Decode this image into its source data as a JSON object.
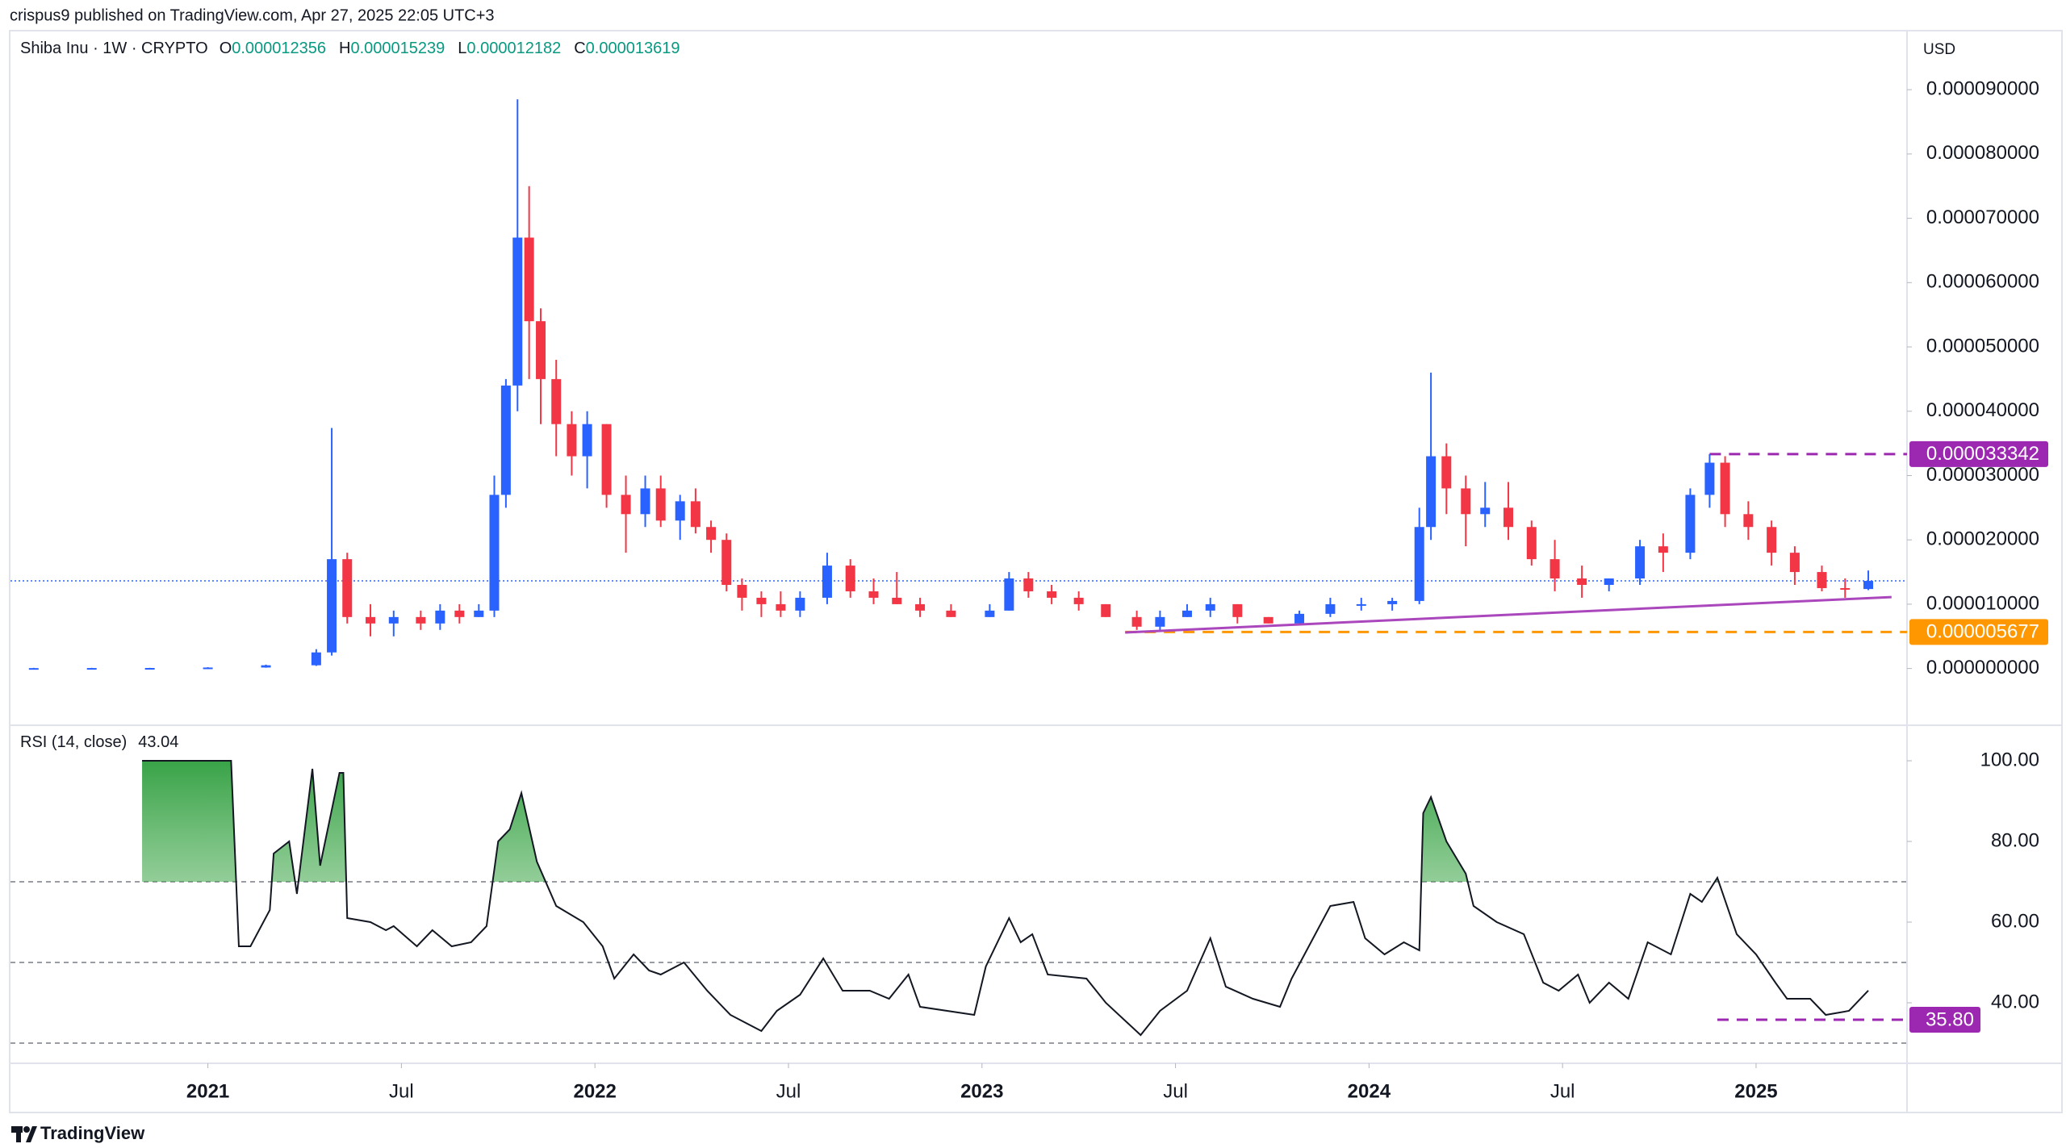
{
  "header": {
    "publisher": "crispus9 published on TradingView.com, Apr 27, 2025 22:05 UTC+3"
  },
  "footer": {
    "brand": "TradingView"
  },
  "chart_data": [
    {
      "type": "candlestick",
      "title": "Shiba Inu · 1W · CRYPTO",
      "y_label": "USD",
      "ohlc_keys": [
        "O",
        "H",
        "L",
        "C"
      ],
      "xlim": [
        2020.49,
        2025.39
      ],
      "ylim": [
        -8.2e-06,
        9.88e-05
      ],
      "yticks": [
        {
          "value": 0,
          "label": "0.000000000"
        },
        {
          "value": 1e-05,
          "label": "0.000010000"
        },
        {
          "value": 2e-05,
          "label": "0.000020000"
        },
        {
          "value": 3e-05,
          "label": "0.000030000"
        },
        {
          "value": 4e-05,
          "label": "0.000040000"
        },
        {
          "value": 5e-05,
          "label": "0.000050000"
        },
        {
          "value": 6e-05,
          "label": "0.000060000"
        },
        {
          "value": 7e-05,
          "label": "0.000070000"
        },
        {
          "value": 8e-05,
          "label": "0.000080000"
        },
        {
          "value": 9e-05,
          "label": "0.000090000"
        }
      ],
      "last_price_line": true,
      "last_price_color": "#2962ff",
      "series": {
        "up_color": "#2962ff",
        "down_color": "#f23645",
        "x": [
          2020.55,
          2020.7,
          2020.85,
          2021.0,
          2021.15,
          2021.28,
          2021.32,
          2021.36,
          2021.42,
          2021.48,
          2021.55,
          2021.6,
          2021.65,
          2021.7,
          2021.74,
          2021.77,
          2021.8,
          2021.83,
          2021.86,
          2021.9,
          2021.94,
          2021.98,
          2022.03,
          2022.08,
          2022.13,
          2022.17,
          2022.22,
          2022.26,
          2022.3,
          2022.34,
          2022.38,
          2022.43,
          2022.48,
          2022.53,
          2022.6,
          2022.66,
          2022.72,
          2022.78,
          2022.84,
          2022.92,
          2023.02,
          2023.07,
          2023.12,
          2023.18,
          2023.25,
          2023.32,
          2023.4,
          2023.46,
          2023.53,
          2023.59,
          2023.66,
          2023.74,
          2023.82,
          2023.9,
          2023.98,
          2024.06,
          2024.13,
          2024.16,
          2024.2,
          2024.25,
          2024.3,
          2024.36,
          2024.42,
          2024.48,
          2024.55,
          2024.62,
          2024.7,
          2024.76,
          2024.83,
          2024.88,
          2024.92,
          2024.98,
          2025.04,
          2025.1,
          2025.17,
          2025.23,
          2025.29
        ],
        "open": [
          5e-08,
          6e-08,
          7e-08,
          8e-08,
          1.5e-07,
          5e-07,
          2.5e-06,
          1.7e-05,
          8e-06,
          7e-06,
          8e-06,
          7e-06,
          9e-06,
          8e-06,
          9e-06,
          2.7e-05,
          4.4e-05,
          6.7e-05,
          5.4e-05,
          4.5e-05,
          3.8e-05,
          3.3e-05,
          3.8e-05,
          2.7e-05,
          2.4e-05,
          2.8e-05,
          2.3e-05,
          2.6e-05,
          2.2e-05,
          2e-05,
          1.3e-05,
          1.1e-05,
          1e-05,
          9e-06,
          1.1e-05,
          1.6e-05,
          1.2e-05,
          1.1e-05,
          1e-05,
          9e-06,
          8e-06,
          9e-06,
          1.4e-05,
          1.2e-05,
          1.1e-05,
          1e-05,
          8e-06,
          6.5e-06,
          8e-06,
          9e-06,
          1e-05,
          8e-06,
          7e-06,
          8.5e-06,
          1e-05,
          1e-05,
          1.05e-05,
          2.2e-05,
          3.3e-05,
          2.8e-05,
          2.4e-05,
          2.5e-05,
          2.2e-05,
          1.7e-05,
          1.4e-05,
          1.3e-05,
          1.4e-05,
          1.9e-05,
          1.8e-05,
          2.7e-05,
          3.2e-05,
          2.4e-05,
          2.2e-05,
          1.8e-05,
          1.5e-05,
          1.25e-05,
          1.2356e-05
        ],
        "high": [
          1e-07,
          1e-07,
          1e-07,
          2e-07,
          6e-07,
          3e-06,
          3.74e-05,
          1.8e-05,
          1e-05,
          9e-06,
          9e-06,
          1e-05,
          1e-05,
          1e-05,
          3e-05,
          4.5e-05,
          8.85e-05,
          7.5e-05,
          5.6e-05,
          4.8e-05,
          4e-05,
          4e-05,
          3.8e-05,
          3e-05,
          3e-05,
          3e-05,
          2.7e-05,
          2.8e-05,
          2.3e-05,
          2.1e-05,
          1.4e-05,
          1.2e-05,
          1.2e-05,
          1.2e-05,
          1.8e-05,
          1.7e-05,
          1.4e-05,
          1.5e-05,
          1.1e-05,
          1e-05,
          1e-05,
          1.5e-05,
          1.5e-05,
          1.3e-05,
          1.2e-05,
          1e-05,
          9e-06,
          9e-06,
          1e-05,
          1.1e-05,
          1e-05,
          8e-06,
          9e-06,
          1.1e-05,
          1.1e-05,
          1.1e-05,
          2.5e-05,
          4.6e-05,
          3.5e-05,
          3e-05,
          2.9e-05,
          2.9e-05,
          2.3e-05,
          2e-05,
          1.6e-05,
          1.4e-05,
          2e-05,
          2.1e-05,
          2.8e-05,
          3.3342e-05,
          3.3e-05,
          2.6e-05,
          2.3e-05,
          1.9e-05,
          1.6e-05,
          1.4e-05,
          1.5239e-05
        ],
        "low": [
          3e-08,
          4e-08,
          5e-08,
          7e-08,
          1.2e-07,
          4e-07,
          2e-06,
          7e-06,
          5e-06,
          5e-06,
          6e-06,
          6e-06,
          7e-06,
          8e-06,
          8e-06,
          2.5e-05,
          4e-05,
          4.5e-05,
          3.8e-05,
          3.3e-05,
          3e-05,
          2.8e-05,
          2.5e-05,
          1.8e-05,
          2.2e-05,
          2.2e-05,
          2e-05,
          2.1e-05,
          1.8e-05,
          1.2e-05,
          9e-06,
          8e-06,
          8e-06,
          8e-06,
          1e-05,
          1.1e-05,
          1e-05,
          1e-05,
          8e-06,
          8e-06,
          8e-06,
          9e-06,
          1.1e-05,
          1e-05,
          9e-06,
          8e-06,
          6e-06,
          6e-06,
          8e-06,
          8e-06,
          7e-06,
          7e-06,
          7e-06,
          8e-06,
          9e-06,
          9e-06,
          1e-05,
          2e-05,
          2.4e-05,
          1.9e-05,
          2.2e-05,
          2e-05,
          1.6e-05,
          1.2e-05,
          1.1e-05,
          1.2e-05,
          1.3e-05,
          1.5e-05,
          1.7e-05,
          2.5e-05,
          2.2e-05,
          2e-05,
          1.6e-05,
          1.3e-05,
          1.2e-05,
          1.1e-05,
          1.2182e-05
        ],
        "close": [
          6e-08,
          7e-08,
          8e-08,
          1.5e-07,
          5e-07,
          2.5e-06,
          1.7e-05,
          8e-06,
          7e-06,
          8e-06,
          7e-06,
          9e-06,
          8e-06,
          9e-06,
          2.7e-05,
          4.4e-05,
          6.7e-05,
          5.4e-05,
          4.5e-05,
          3.8e-05,
          3.3e-05,
          3.8e-05,
          2.7e-05,
          2.4e-05,
          2.8e-05,
          2.3e-05,
          2.6e-05,
          2.2e-05,
          2e-05,
          1.3e-05,
          1.1e-05,
          1e-05,
          9e-06,
          1.1e-05,
          1.6e-05,
          1.2e-05,
          1.1e-05,
          1e-05,
          9e-06,
          8e-06,
          9e-06,
          1.4e-05,
          1.2e-05,
          1.1e-05,
          1e-05,
          8e-06,
          6.5e-06,
          8e-06,
          9e-06,
          1e-05,
          8e-06,
          7e-06,
          8.5e-06,
          1e-05,
          1e-05,
          1.05e-05,
          2.2e-05,
          3.3e-05,
          2.8e-05,
          2.4e-05,
          2.5e-05,
          2.2e-05,
          1.7e-05,
          1.4e-05,
          1.3e-05,
          1.4e-05,
          1.9e-05,
          1.8e-05,
          2.7e-05,
          3.2e-05,
          2.4e-05,
          2.2e-05,
          1.8e-05,
          1.5e-05,
          1.25e-05,
          1.24e-05,
          1.3619e-05
        ]
      },
      "levels": [
        {
          "value": 3.3342e-05,
          "color": "#9c27b0",
          "from": 2024.88
        },
        {
          "value": 5.677e-06,
          "color": "#ff9800",
          "from": 2023.37
        }
      ],
      "trendline": {
        "x": [
          2023.37,
          2025.35
        ],
        "y": [
          5.6e-06,
          1.11e-05
        ],
        "color": "#ab47bc"
      }
    },
    {
      "type": "line",
      "title": "RSI (14, close)",
      "xlim": [
        2020.49,
        2025.39
      ],
      "ylim": [
        26,
        108
      ],
      "yticks": [
        {
          "value": 40,
          "label": "40.00"
        },
        {
          "value": 60,
          "label": "60.00"
        },
        {
          "value": 80,
          "label": "80.00"
        },
        {
          "value": 100,
          "label": "100.00"
        }
      ],
      "xticks": [
        2021,
        {
          "value": 2021.5,
          "label": "Jul"
        },
        2022,
        {
          "value": 2022.5,
          "label": "Jul"
        },
        2023,
        {
          "value": 2023.5,
          "label": "Jul"
        },
        2024,
        {
          "value": 2024.5,
          "label": "Jul"
        },
        2025
      ],
      "bands": [
        70,
        50,
        30
      ],
      "overbought_fill": true,
      "series": [
        {
          "color": "#131722",
          "x": [
            2020.83,
            2021.06,
            2021.08,
            2021.11,
            2021.16,
            2021.17,
            2021.21,
            2021.23,
            2021.27,
            2021.29,
            2021.34,
            2021.35,
            2021.36,
            2021.42,
            2021.46,
            2021.48,
            2021.54,
            2021.58,
            2021.63,
            2021.68,
            2021.72,
            2021.75,
            2021.78,
            2021.81,
            2021.85,
            2021.9,
            2021.97,
            2022.02,
            2022.05,
            2022.1,
            2022.14,
            2022.17,
            2022.23,
            2022.29,
            2022.35,
            2022.43,
            2022.47,
            2022.53,
            2022.59,
            2022.64,
            2022.71,
            2022.76,
            2022.81,
            2022.84,
            2022.98,
            2023.01,
            2023.07,
            2023.1,
            2023.13,
            2023.17,
            2023.27,
            2023.32,
            2023.41,
            2023.46,
            2023.53,
            2023.59,
            2023.63,
            2023.7,
            2023.77,
            2023.8,
            2023.85,
            2023.9,
            2023.96,
            2023.99,
            2024.04,
            2024.09,
            2024.13,
            2024.14,
            2024.16,
            2024.2,
            2024.25,
            2024.27,
            2024.33,
            2024.4,
            2024.45,
            2024.49,
            2024.54,
            2024.57,
            2024.62,
            2024.67,
            2024.72,
            2024.78,
            2024.83,
            2024.86,
            2024.9,
            2024.95,
            2025.0,
            2025.05,
            2025.08,
            2025.14,
            2025.18,
            2025.24,
            2025.29
          ],
          "values": [
            100,
            100,
            54,
            54,
            63,
            77,
            80,
            67,
            98,
            74,
            97,
            97,
            61,
            60,
            58,
            59,
            54,
            58,
            54,
            55,
            59,
            80,
            83,
            92,
            75,
            64,
            60,
            54,
            46,
            52,
            48,
            47,
            50,
            43,
            37,
            33,
            38,
            42,
            51,
            43,
            43,
            41,
            47,
            39,
            37,
            49,
            61,
            55,
            57,
            47,
            46,
            40,
            32,
            38,
            43,
            56,
            44,
            41,
            39,
            46,
            55,
            64,
            65,
            56,
            52,
            55,
            53,
            87,
            91,
            80,
            72,
            64,
            60,
            57,
            45,
            43,
            47,
            40,
            45,
            41,
            55,
            52,
            67,
            65,
            71,
            57,
            52,
            45,
            41,
            41,
            37,
            38,
            43.04
          ]
        }
      ],
      "levels": [
        {
          "value": 35.8,
          "label": "35.80",
          "color": "#9c27b0",
          "from": 2024.9
        }
      ]
    }
  ]
}
